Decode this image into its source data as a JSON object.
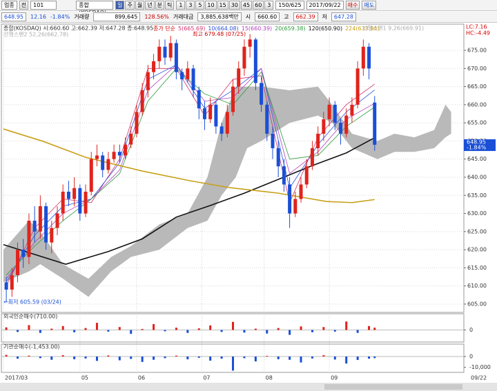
{
  "toolbar": {
    "market": "업종",
    "mode": "전",
    "code": "101",
    "name": "종합(KOSDAQ)",
    "periods": [
      "일",
      "주",
      "월",
      "년",
      "분",
      "틱"
    ],
    "intervals": [
      "1",
      "3",
      "5",
      "10",
      "15",
      "30",
      "45",
      "60",
      "3"
    ],
    "count": "150/625",
    "date": "2017/09/22",
    "buy": "매수",
    "sell": "매도"
  },
  "quote": {
    "price": "648.95",
    "change": "12.16",
    "rate": "-1.84%",
    "volume_label": "거래량",
    "volume": "899,645",
    "volume_ratio": "128.56%",
    "amount_label": "거래대금",
    "amount": "3,885,638백만",
    "open_label": "시",
    "open": "660.60",
    "high_label": "고",
    "high": "662.39",
    "low_label": "저",
    "low": "647.28"
  },
  "chart_data": [
    {
      "type": "candlestick",
      "title": "종합(KOSDAQ) 시:660.60 고:662.39 저:647.28 종:648.95",
      "legend_title": "종가 단순",
      "x": [
        0,
        2,
        4,
        6,
        8,
        10,
        12,
        14,
        16,
        18,
        20,
        22,
        24,
        26,
        28,
        30,
        32,
        34,
        36,
        38,
        40,
        42,
        44,
        46,
        48,
        50,
        52,
        54,
        56,
        58,
        60,
        62,
        64,
        66,
        68,
        70,
        72,
        74,
        76,
        78,
        80,
        82,
        84,
        86,
        88,
        90,
        92,
        94,
        96,
        98,
        100,
        102,
        104,
        106,
        108,
        110,
        112,
        114,
        116,
        118,
        120,
        122,
        124,
        126,
        128,
        130
      ],
      "open": [
        611,
        609,
        613,
        620,
        618,
        628,
        625,
        632,
        622,
        626,
        630,
        636,
        634,
        637,
        630,
        636,
        645,
        646,
        642,
        645,
        647,
        646,
        649,
        652,
        658,
        664,
        669,
        672,
        676,
        673,
        677,
        669,
        667,
        670,
        664,
        659,
        656,
        660,
        654,
        652,
        658,
        665,
        670,
        676,
        678,
        666,
        660,
        652,
        648,
        643,
        638,
        630,
        634,
        638,
        643,
        648,
        652,
        656,
        660,
        655,
        652,
        657,
        660,
        670,
        676,
        660.6
      ],
      "high": [
        612.5,
        615,
        622,
        623,
        630,
        632,
        635,
        633,
        628,
        632,
        638,
        639,
        640,
        638,
        638,
        647,
        649,
        647,
        647,
        649,
        649,
        651,
        654,
        660,
        666,
        671,
        674,
        678,
        678,
        679,
        678,
        670,
        672,
        671,
        665,
        661,
        662,
        661,
        655,
        660,
        667,
        672,
        678,
        679.48,
        678.5,
        668,
        661,
        654,
        650,
        645,
        640,
        636,
        640,
        645,
        650,
        654,
        658,
        662,
        661,
        656,
        659,
        662,
        672,
        678,
        677,
        662.39
      ],
      "low": [
        605.59,
        607,
        611,
        615,
        616,
        622,
        623,
        620,
        619,
        624,
        628,
        632,
        632,
        628,
        629,
        635,
        643,
        640,
        641,
        644,
        644,
        645,
        648,
        651,
        657,
        662,
        667,
        670,
        671,
        672,
        667,
        664,
        666,
        662,
        656,
        653,
        655,
        652,
        650,
        651,
        657,
        663,
        668,
        673,
        664,
        658,
        650,
        645,
        640,
        636,
        626,
        629,
        633,
        637,
        642,
        646,
        650,
        654,
        653,
        649,
        651,
        655,
        659,
        668,
        667,
        647.28
      ],
      "close": [
        609,
        613,
        620,
        618,
        628,
        625,
        632,
        622,
        626,
        630,
        636,
        634,
        637,
        630,
        636,
        645,
        646,
        642,
        645,
        647,
        646,
        649,
        652,
        658,
        664,
        669,
        672,
        676,
        673,
        677,
        669,
        667,
        670,
        664,
        659,
        656,
        660,
        654,
        652,
        658,
        665,
        670,
        676,
        678,
        666,
        660,
        652,
        648,
        643,
        638,
        630,
        634,
        638,
        643,
        648,
        652,
        656,
        660,
        655,
        652,
        657,
        660,
        670,
        676,
        670,
        648.95
      ],
      "up_color": "#e0231c",
      "down_color": "#1a4fd6",
      "series": [
        {
          "name": "5(665.69)",
          "color": "#d4306e",
          "width": 0.8,
          "x": [
            0,
            10,
            20,
            30,
            40,
            50,
            60,
            70,
            80,
            90,
            100,
            110,
            120,
            130
          ],
          "values": [
            610,
            626,
            634,
            633,
            645,
            670,
            670,
            657,
            667,
            668,
            633,
            651,
            660,
            665.69
          ]
        },
        {
          "name": "10(664.08)",
          "color": "#2b4fd8",
          "width": 0.8,
          "x": [
            0,
            10,
            20,
            30,
            40,
            50,
            60,
            70,
            80,
            90,
            100,
            110,
            120,
            130
          ],
          "values": [
            611,
            624,
            632,
            634,
            644,
            667,
            671,
            659,
            664,
            670,
            637,
            649,
            658,
            664.08
          ]
        },
        {
          "name": "15(660.39)",
          "color": "#b040c0",
          "width": 0.8,
          "x": [
            0,
            10,
            20,
            30,
            40,
            50,
            60,
            70,
            80,
            90,
            100,
            110,
            120,
            130
          ],
          "values": [
            612,
            622,
            630,
            634,
            642,
            664,
            671,
            661,
            662,
            670,
            641,
            647,
            656,
            660.39
          ]
        },
        {
          "name": "20(659.38)",
          "color": "#2c9a3c",
          "width": 0.8,
          "x": [
            0,
            10,
            20,
            30,
            40,
            50,
            60,
            70,
            80,
            90,
            100,
            110,
            120,
            130
          ],
          "values": [
            613,
            621,
            628,
            634,
            641,
            661,
            670,
            663,
            660,
            669,
            645,
            646,
            654,
            659.38
          ]
        },
        {
          "name": "120(650.90)",
          "color": "#111111",
          "width": 1.6,
          "x": [
            -1,
            21,
            36,
            48,
            60,
            72,
            84,
            96,
            108,
            120,
            130
          ],
          "values": [
            621.4,
            616,
            619.5,
            623,
            629,
            632.2,
            635.6,
            639.4,
            643.2,
            646.7,
            650.9
          ]
        },
        {
          "name": "224(633.84)",
          "color": "#c8a018",
          "width": 1.6,
          "x": [
            -1,
            13,
            28,
            48,
            65,
            79,
            96,
            113,
            122,
            130
          ],
          "values": [
            653.3,
            649.9,
            645.5,
            641.7,
            639,
            637.1,
            635.6,
            633.3,
            633,
            633.84
          ]
        }
      ],
      "cloud": {
        "upper_name": "선행스팬1 9,26(669.91)",
        "lower_name": "선행스팬2 52,26(662.78)",
        "color": "#b9b9b9",
        "x": [
          -1,
          8,
          12,
          20,
          29,
          37,
          44,
          54,
          64,
          71,
          76,
          81,
          85,
          90,
          100,
          110,
          115,
          122,
          131,
          137,
          144,
          151,
          155,
          157
        ],
        "upper": [
          620,
          628,
          625,
          616,
          612,
          618,
          621,
          627,
          630,
          640,
          655,
          665,
          665,
          665,
          664,
          665,
          660,
          652,
          650,
          652,
          651,
          653,
          660,
          658
        ],
        "lower": [
          611,
          614,
          616,
          612,
          607,
          614,
          618,
          620,
          626,
          628,
          635,
          640,
          648,
          650,
          655,
          657,
          655,
          648,
          645,
          647,
          647,
          648,
          651,
          652
        ]
      },
      "xlim": [
        -1,
        161
      ],
      "ylim": [
        602.9,
        682.04
      ],
      "yticks": [
        {
          "value": 605,
          "label": "605.00"
        },
        {
          "value": 610,
          "label": "610.00"
        },
        {
          "value": 615,
          "label": "615.00"
        },
        {
          "value": 620,
          "label": "620.00"
        },
        {
          "value": 625,
          "label": "625.00"
        },
        {
          "value": 630,
          "label": "630.00"
        },
        {
          "value": 635,
          "label": "635.00"
        },
        {
          "value": 640,
          "label": "640.00"
        },
        {
          "value": 645,
          "label": "645.00"
        },
        {
          "value": 650,
          "label": "650.00"
        },
        {
          "value": 655,
          "label": "655.00"
        },
        {
          "value": 660,
          "label": "660.00"
        },
        {
          "value": 665,
          "label": "665.00"
        },
        {
          "value": 670,
          "label": "670.00"
        },
        {
          "value": 675,
          "label": "675.00"
        }
      ],
      "xticks": [
        {
          "value": -1,
          "label": "2017/03"
        },
        {
          "value": 26,
          "label": "05"
        },
        {
          "value": 46,
          "label": "06"
        },
        {
          "value": 69,
          "label": "07"
        },
        {
          "value": 91,
          "label": "08"
        },
        {
          "value": 114,
          "label": "09"
        }
      ],
      "end_label": "09/22",
      "high_label": "최고 679.48 (07/25)",
      "low_label": "←최저 605.59 (03/24)",
      "last_label": "648.95",
      "last_rate_label": "-1.84%",
      "lc_label": "LC:7.16",
      "hc_label": "HC:-4.49",
      "grid": true
    },
    {
      "type": "bar",
      "title": "외국인순매수(710.00)",
      "up_color": "#e0231c",
      "down_color": "#1a4fd6",
      "x": [
        0,
        4,
        8,
        12,
        16,
        20,
        24,
        28,
        32,
        36,
        40,
        44,
        48,
        52,
        56,
        60,
        64,
        68,
        72,
        76,
        80,
        84,
        88,
        92,
        96,
        100,
        104,
        108,
        112,
        116,
        120,
        124,
        128,
        130
      ],
      "values": [
        800,
        -600,
        1500,
        -900,
        400,
        1200,
        -700,
        600,
        2200,
        -500,
        900,
        -1200,
        300,
        1800,
        -400,
        700,
        -900,
        500,
        1400,
        -600,
        2500,
        -800,
        400,
        -1100,
        600,
        -1500,
        1100,
        -700,
        900,
        -500,
        2600,
        -900,
        1200,
        710
      ],
      "ylim": [
        -3500,
        3500
      ],
      "yticks": [
        0
      ]
    },
    {
      "type": "bar",
      "title": "기관순매수(-1,453.00)",
      "up_color": "#e0231c",
      "down_color": "#1a4fd6",
      "x": [
        0,
        4,
        8,
        12,
        16,
        20,
        24,
        28,
        32,
        36,
        40,
        44,
        48,
        52,
        56,
        60,
        64,
        68,
        72,
        76,
        80,
        84,
        88,
        92,
        96,
        100,
        104,
        108,
        112,
        116,
        120,
        124,
        128,
        130
      ],
      "values": [
        1500,
        -2000,
        800,
        -1500,
        -3000,
        1200,
        -2500,
        -1800,
        -4000,
        1000,
        -3500,
        -2200,
        -5000,
        -3000,
        -1500,
        800,
        -2600,
        -1200,
        -3800,
        -2000,
        -13000,
        -1500,
        -4500,
        600,
        -2500,
        -3000,
        -5500,
        -1800,
        1200,
        -2800,
        -6500,
        -3200,
        -2000,
        -1453
      ],
      "ylim": [
        -14000,
        7000
      ],
      "yticks": [
        0,
        {
          "value": -10000,
          "label": "-10,000"
        }
      ]
    }
  ]
}
